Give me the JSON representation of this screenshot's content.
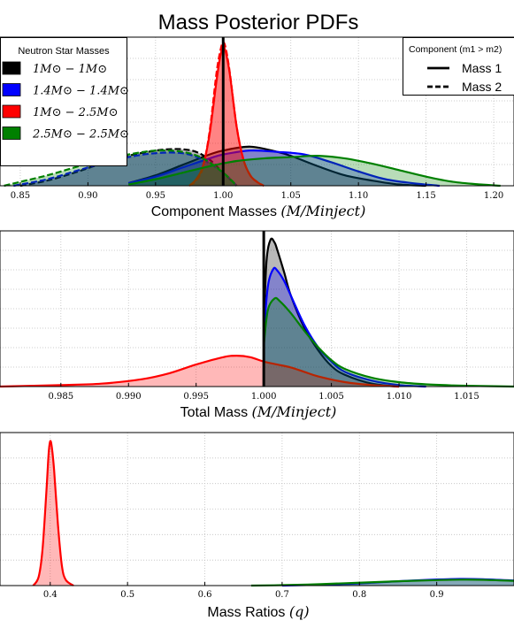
{
  "title": "Mass Posterior PDFs",
  "colors": {
    "black": "#000000",
    "blue": "#0000ff",
    "red": "#ff0000",
    "green": "#008000",
    "grid": "#bfbfbf"
  },
  "chart_data": [
    {
      "type": "area",
      "xlabel": "Component Masses (M/M_inject)",
      "xlim": [
        0.835,
        1.215
      ],
      "ticks": [
        "0.85",
        "0.90",
        "0.95",
        "1.00",
        "1.05",
        "1.10",
        "1.15",
        "1.20"
      ],
      "vline": 1.0,
      "grid": true,
      "legend_sizes": {
        "title": "Neutron Star Masses",
        "placement": "top-left",
        "entries": [
          {
            "label": "1M⊙ − 1M⊙",
            "color": "#000000"
          },
          {
            "label": "1.4M⊙ − 1.4M⊙",
            "color": "#0000ff"
          },
          {
            "label": "1M⊙ − 2.5M⊙",
            "color": "#ff0000"
          },
          {
            "label": "2.5M⊙ − 2.5M⊙",
            "color": "#008000"
          }
        ]
      },
      "legend_components": {
        "title": "Component (m1 > m2)",
        "placement": "top-right",
        "entries": [
          {
            "label": "Mass 1",
            "style": "solid"
          },
          {
            "label": "Mass 2",
            "style": "dashed"
          }
        ]
      },
      "series": [
        {
          "color": "#000000",
          "component": "Mass 1",
          "x": [
            0.93,
            0.95,
            0.97,
            0.99,
            1.0,
            1.02,
            1.04,
            1.05,
            1.07,
            1.09,
            1.11,
            1.13,
            1.15
          ],
          "y": [
            0.02,
            0.08,
            0.16,
            0.24,
            0.27,
            0.3,
            0.26,
            0.23,
            0.15,
            0.08,
            0.04,
            0.01,
            0.0
          ]
        },
        {
          "color": "#000000",
          "component": "Mass 2",
          "x": [
            0.85,
            0.87,
            0.89,
            0.91,
            0.93,
            0.95,
            0.96,
            0.97,
            0.98,
            0.99,
            1.0,
            1.01
          ],
          "y": [
            0.0,
            0.04,
            0.1,
            0.17,
            0.23,
            0.27,
            0.28,
            0.28,
            0.26,
            0.2,
            0.1,
            0.0
          ]
        },
        {
          "color": "#0000ff",
          "component": "Mass 1",
          "x": [
            0.93,
            0.95,
            0.97,
            0.99,
            1.0,
            1.02,
            1.04,
            1.06,
            1.08,
            1.1,
            1.12,
            1.14,
            1.16
          ],
          "y": [
            0.02,
            0.07,
            0.14,
            0.21,
            0.24,
            0.27,
            0.26,
            0.24,
            0.18,
            0.11,
            0.05,
            0.02,
            0.0
          ]
        },
        {
          "color": "#0000ff",
          "component": "Mass 2",
          "x": [
            0.845,
            0.87,
            0.89,
            0.91,
            0.93,
            0.95,
            0.97,
            0.985,
            1.0,
            1.01
          ],
          "y": [
            0.0,
            0.05,
            0.11,
            0.17,
            0.22,
            0.25,
            0.25,
            0.2,
            0.1,
            0.0
          ]
        },
        {
          "color": "#ff0000",
          "component": "Mass 1",
          "x": [
            0.975,
            0.98,
            0.985,
            0.99,
            0.995,
            0.998,
            1.0,
            1.002,
            1.005,
            1.01,
            1.015,
            1.02,
            1.025,
            1.03
          ],
          "y": [
            0.0,
            0.05,
            0.15,
            0.4,
            0.8,
            1.0,
            1.06,
            1.02,
            0.85,
            0.45,
            0.2,
            0.08,
            0.03,
            0.0
          ]
        },
        {
          "color": "#ff0000",
          "component": "Mass 2",
          "x": [
            0.975,
            0.98,
            0.985,
            0.99,
            0.995,
            0.998,
            1.0,
            1.002,
            1.005,
            1.01,
            1.015,
            1.02,
            1.025,
            1.03
          ],
          "y": [
            0.0,
            0.04,
            0.14,
            0.42,
            0.86,
            1.04,
            1.1,
            1.05,
            0.86,
            0.45,
            0.2,
            0.08,
            0.03,
            0.0
          ]
        },
        {
          "color": "#008000",
          "component": "Mass 1",
          "x": [
            0.93,
            0.95,
            0.97,
            0.99,
            1.01,
            1.03,
            1.05,
            1.07,
            1.09,
            1.11,
            1.13,
            1.15,
            1.17,
            1.19,
            1.205
          ],
          "y": [
            0.01,
            0.05,
            0.1,
            0.15,
            0.19,
            0.21,
            0.22,
            0.23,
            0.21,
            0.17,
            0.12,
            0.07,
            0.03,
            0.01,
            0.0
          ]
        },
        {
          "color": "#008000",
          "component": "Mass 2",
          "x": [
            0.838,
            0.85,
            0.87,
            0.89,
            0.91,
            0.93,
            0.95,
            0.97,
            0.985,
            1.0,
            1.01
          ],
          "y": [
            0.0,
            0.03,
            0.08,
            0.14,
            0.2,
            0.24,
            0.27,
            0.26,
            0.21,
            0.1,
            0.0
          ]
        }
      ]
    },
    {
      "type": "area",
      "xlabel": "Total Mass (M/M_inject)",
      "xlim": [
        0.9805,
        1.0185
      ],
      "ticks": [
        "0.985",
        "0.990",
        "0.995",
        "1.000",
        "1.005",
        "1.010",
        "1.015"
      ],
      "vline": 1.0,
      "grid": true,
      "series": [
        {
          "color": "#000000",
          "x": [
            1.0,
            1.0002,
            1.0005,
            1.0008,
            1.001,
            1.0015,
            1.002,
            1.003,
            1.004,
            1.005,
            1.006,
            1.008,
            1.01
          ],
          "y": [
            0.4,
            0.85,
            1.0,
            0.98,
            0.93,
            0.78,
            0.62,
            0.4,
            0.25,
            0.14,
            0.08,
            0.02,
            0.0
          ]
        },
        {
          "color": "#0000ff",
          "x": [
            1.0,
            1.0003,
            1.0007,
            1.001,
            1.0015,
            1.002,
            1.003,
            1.004,
            1.005,
            1.006,
            1.008,
            1.01,
            1.012
          ],
          "y": [
            0.35,
            0.68,
            0.8,
            0.79,
            0.72,
            0.62,
            0.42,
            0.27,
            0.17,
            0.1,
            0.04,
            0.01,
            0.0
          ]
        },
        {
          "color": "#ff0000",
          "x": [
            0.9805,
            0.985,
            0.988,
            0.991,
            0.993,
            0.995,
            0.997,
            0.998,
            0.999,
            1.0,
            1.001,
            1.002,
            1.003,
            1.004,
            1.006,
            1.008,
            1.01
          ],
          "y": [
            0.0,
            0.01,
            0.02,
            0.05,
            0.09,
            0.15,
            0.2,
            0.21,
            0.2,
            0.17,
            0.15,
            0.13,
            0.1,
            0.07,
            0.03,
            0.01,
            0.0
          ]
        },
        {
          "color": "#008000",
          "x": [
            1.0,
            1.0003,
            1.0008,
            1.0012,
            1.002,
            1.003,
            1.004,
            1.005,
            1.006,
            1.008,
            1.01,
            1.012,
            1.014,
            1.016,
            1.0185
          ],
          "y": [
            0.28,
            0.52,
            0.6,
            0.58,
            0.5,
            0.38,
            0.27,
            0.18,
            0.12,
            0.06,
            0.03,
            0.015,
            0.008,
            0.004,
            0.0
          ]
        }
      ]
    },
    {
      "type": "area",
      "xlabel": "Mass Ratios (q)",
      "xlim": [
        0.335,
        1.0
      ],
      "ticks": [
        "0.4",
        "0.5",
        "0.6",
        "0.7",
        "0.8",
        "0.9"
      ],
      "grid": true,
      "series": [
        {
          "color": "#ff0000",
          "x": [
            0.378,
            0.385,
            0.39,
            0.395,
            0.398,
            0.4,
            0.402,
            0.405,
            0.41,
            0.415,
            0.42,
            0.43
          ],
          "y": [
            0.0,
            0.06,
            0.25,
            0.65,
            0.92,
            1.0,
            0.96,
            0.8,
            0.42,
            0.14,
            0.04,
            0.0
          ]
        },
        {
          "color": "#0000ff",
          "x": [
            0.7,
            0.75,
            0.8,
            0.85,
            0.9,
            0.93,
            0.96,
            1.0
          ],
          "y": [
            0.0,
            0.006,
            0.015,
            0.03,
            0.042,
            0.046,
            0.044,
            0.035
          ]
        },
        {
          "color": "#008000",
          "x": [
            0.66,
            0.7,
            0.75,
            0.8,
            0.85,
            0.9,
            0.93,
            0.96,
            1.0
          ],
          "y": [
            0.0,
            0.003,
            0.01,
            0.02,
            0.03,
            0.038,
            0.041,
            0.04,
            0.033
          ]
        }
      ]
    }
  ]
}
